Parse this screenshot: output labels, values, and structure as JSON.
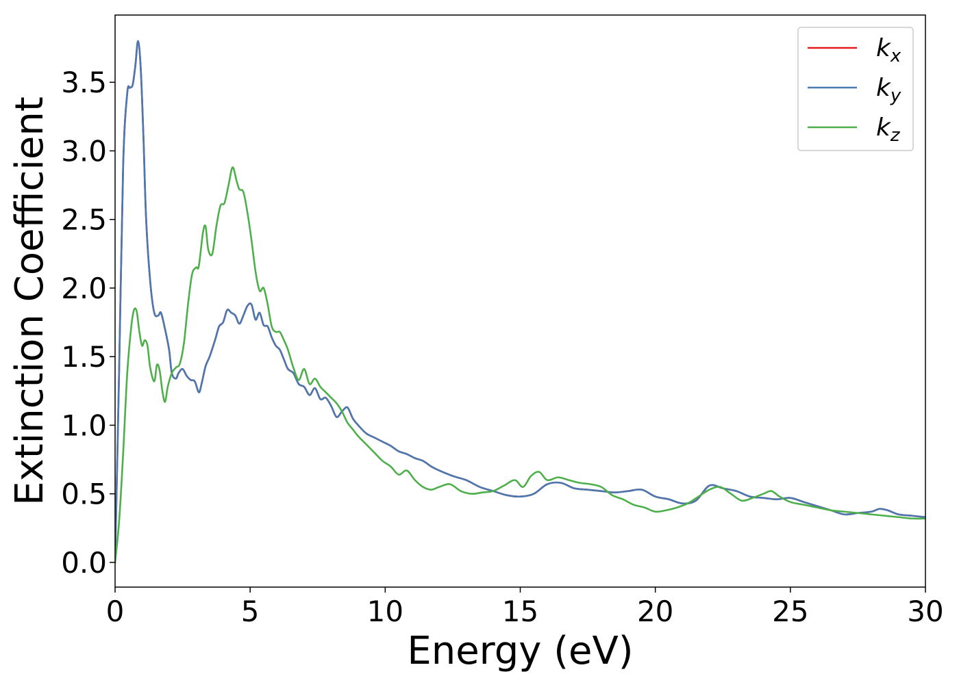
{
  "chart_data": {
    "type": "line",
    "title": "",
    "xlabel": "Energy (eV)",
    "ylabel": "Extinction Coefficient",
    "xlim": [
      0,
      30
    ],
    "ylim": [
      -0.18,
      3.99
    ],
    "xticks": [
      0,
      5,
      10,
      15,
      20,
      25,
      30
    ],
    "xtick_labels": [
      "0",
      "5",
      "10",
      "15",
      "20",
      "25",
      "30"
    ],
    "yticks": [
      0.0,
      0.5,
      1.0,
      1.5,
      2.0,
      2.5,
      3.0,
      3.5
    ],
    "ytick_labels": [
      "0.0",
      "0.5",
      "1.0",
      "1.5",
      "2.0",
      "2.5",
      "3.0",
      "3.5"
    ],
    "grid": false,
    "legend_position": "top-right",
    "series": [
      {
        "name": "k",
        "subscript": "x",
        "color": "#e41a1c",
        "x": [
          0,
          0.15,
          0.3,
          0.45,
          0.55,
          0.65,
          0.75,
          0.85,
          0.95,
          1.05,
          1.15,
          1.3,
          1.45,
          1.6,
          1.7,
          1.85,
          2.0,
          2.1,
          2.25,
          2.35,
          2.5,
          2.65,
          2.8,
          2.95,
          3.1,
          3.2,
          3.35,
          3.5,
          3.7,
          3.85,
          4.0,
          4.15,
          4.3,
          4.45,
          4.6,
          4.75,
          4.9,
          5.05,
          5.2,
          5.35,
          5.5,
          5.65,
          5.8,
          5.95,
          6.1,
          6.25,
          6.4,
          6.6,
          6.8,
          7.0,
          7.2,
          7.4,
          7.6,
          7.8,
          8.0,
          8.2,
          8.4,
          8.6,
          8.8,
          9.0,
          9.3,
          9.6,
          9.9,
          10.2,
          10.5,
          10.8,
          11.1,
          11.4,
          11.7,
          12.0,
          12.5,
          13.0,
          13.5,
          14.0,
          14.5,
          15.0,
          15.5,
          16.0,
          16.5,
          17.0,
          17.5,
          18.0,
          18.5,
          19.0,
          19.5,
          20.0,
          20.5,
          21.0,
          21.5,
          22.0,
          22.5,
          23.0,
          23.5,
          24.0,
          24.5,
          25.0,
          25.5,
          26.0,
          26.5,
          27.0,
          27.5,
          28.0,
          28.3,
          28.6,
          29.0,
          29.5,
          30.0
        ],
        "values": [
          0.0,
          1.4,
          2.9,
          3.42,
          3.46,
          3.48,
          3.62,
          3.8,
          3.6,
          3.1,
          2.5,
          2.05,
          1.82,
          1.8,
          1.82,
          1.7,
          1.55,
          1.38,
          1.34,
          1.38,
          1.41,
          1.36,
          1.33,
          1.32,
          1.24,
          1.3,
          1.43,
          1.5,
          1.62,
          1.72,
          1.75,
          1.84,
          1.82,
          1.8,
          1.74,
          1.8,
          1.87,
          1.88,
          1.77,
          1.82,
          1.73,
          1.72,
          1.64,
          1.58,
          1.55,
          1.48,
          1.41,
          1.38,
          1.3,
          1.28,
          1.22,
          1.27,
          1.19,
          1.2,
          1.14,
          1.06,
          1.1,
          1.13,
          1.05,
          1.0,
          0.94,
          0.91,
          0.88,
          0.85,
          0.81,
          0.79,
          0.76,
          0.74,
          0.7,
          0.67,
          0.63,
          0.6,
          0.55,
          0.52,
          0.49,
          0.48,
          0.5,
          0.57,
          0.58,
          0.54,
          0.53,
          0.52,
          0.51,
          0.52,
          0.53,
          0.48,
          0.46,
          0.43,
          0.45,
          0.56,
          0.54,
          0.52,
          0.48,
          0.47,
          0.46,
          0.47,
          0.44,
          0.41,
          0.38,
          0.35,
          0.36,
          0.37,
          0.39,
          0.38,
          0.35,
          0.34,
          0.33
        ]
      },
      {
        "name": "k",
        "subscript": "y",
        "color": "#4a78b0",
        "x": [
          0,
          0.15,
          0.3,
          0.45,
          0.55,
          0.65,
          0.75,
          0.85,
          0.95,
          1.05,
          1.15,
          1.3,
          1.45,
          1.6,
          1.7,
          1.85,
          2.0,
          2.1,
          2.25,
          2.35,
          2.5,
          2.65,
          2.8,
          2.95,
          3.1,
          3.2,
          3.35,
          3.5,
          3.7,
          3.85,
          4.0,
          4.15,
          4.3,
          4.45,
          4.6,
          4.75,
          4.9,
          5.05,
          5.2,
          5.35,
          5.5,
          5.65,
          5.8,
          5.95,
          6.1,
          6.25,
          6.4,
          6.6,
          6.8,
          7.0,
          7.2,
          7.4,
          7.6,
          7.8,
          8.0,
          8.2,
          8.4,
          8.6,
          8.8,
          9.0,
          9.3,
          9.6,
          9.9,
          10.2,
          10.5,
          10.8,
          11.1,
          11.4,
          11.7,
          12.0,
          12.5,
          13.0,
          13.5,
          14.0,
          14.5,
          15.0,
          15.5,
          16.0,
          16.5,
          17.0,
          17.5,
          18.0,
          18.5,
          19.0,
          19.5,
          20.0,
          20.5,
          21.0,
          21.5,
          22.0,
          22.5,
          23.0,
          23.5,
          24.0,
          24.5,
          25.0,
          25.5,
          26.0,
          26.5,
          27.0,
          27.5,
          28.0,
          28.3,
          28.6,
          29.0,
          29.5,
          30.0
        ],
        "values": [
          0.0,
          1.4,
          2.9,
          3.42,
          3.46,
          3.48,
          3.62,
          3.8,
          3.6,
          3.1,
          2.5,
          2.05,
          1.82,
          1.8,
          1.82,
          1.7,
          1.55,
          1.38,
          1.34,
          1.38,
          1.41,
          1.36,
          1.33,
          1.32,
          1.24,
          1.3,
          1.43,
          1.5,
          1.62,
          1.72,
          1.75,
          1.84,
          1.82,
          1.8,
          1.74,
          1.8,
          1.87,
          1.88,
          1.77,
          1.82,
          1.73,
          1.72,
          1.64,
          1.58,
          1.55,
          1.48,
          1.41,
          1.38,
          1.3,
          1.28,
          1.22,
          1.27,
          1.19,
          1.2,
          1.14,
          1.06,
          1.1,
          1.13,
          1.05,
          1.0,
          0.94,
          0.91,
          0.88,
          0.85,
          0.81,
          0.79,
          0.76,
          0.74,
          0.7,
          0.67,
          0.63,
          0.6,
          0.55,
          0.52,
          0.49,
          0.48,
          0.5,
          0.57,
          0.58,
          0.54,
          0.53,
          0.52,
          0.51,
          0.52,
          0.53,
          0.48,
          0.46,
          0.43,
          0.45,
          0.56,
          0.54,
          0.52,
          0.48,
          0.47,
          0.46,
          0.47,
          0.44,
          0.41,
          0.38,
          0.35,
          0.36,
          0.37,
          0.39,
          0.38,
          0.35,
          0.34,
          0.33
        ]
      },
      {
        "name": "k",
        "subscript": "z",
        "color": "#4daf4a",
        "x": [
          0,
          0.15,
          0.3,
          0.45,
          0.6,
          0.7,
          0.8,
          0.9,
          1.0,
          1.1,
          1.2,
          1.3,
          1.45,
          1.55,
          1.65,
          1.75,
          1.85,
          1.95,
          2.1,
          2.25,
          2.4,
          2.55,
          2.7,
          2.85,
          3.0,
          3.1,
          3.25,
          3.35,
          3.45,
          3.6,
          3.75,
          3.9,
          4.05,
          4.2,
          4.35,
          4.5,
          4.6,
          4.75,
          4.9,
          5.05,
          5.2,
          5.35,
          5.5,
          5.65,
          5.8,
          5.95,
          6.1,
          6.25,
          6.4,
          6.6,
          6.8,
          7.0,
          7.2,
          7.4,
          7.6,
          7.8,
          8.0,
          8.2,
          8.4,
          8.6,
          8.8,
          9.0,
          9.3,
          9.6,
          9.9,
          10.2,
          10.5,
          10.8,
          11.1,
          11.4,
          11.7,
          12.0,
          12.4,
          12.8,
          13.2,
          13.6,
          14.0,
          14.4,
          14.8,
          15.1,
          15.4,
          15.7,
          16.0,
          16.4,
          16.8,
          17.2,
          17.6,
          18.0,
          18.4,
          18.8,
          19.2,
          19.6,
          20.0,
          20.4,
          20.8,
          21.2,
          21.6,
          22.0,
          22.4,
          22.8,
          23.2,
          23.6,
          24.0,
          24.3,
          24.6,
          25.0,
          25.5,
          26.0,
          26.5,
          27.0,
          27.5,
          28.0,
          28.5,
          29.0,
          29.5,
          30.0
        ],
        "values": [
          0.0,
          0.3,
          0.8,
          1.38,
          1.72,
          1.84,
          1.83,
          1.68,
          1.58,
          1.62,
          1.58,
          1.42,
          1.32,
          1.44,
          1.4,
          1.25,
          1.17,
          1.28,
          1.38,
          1.42,
          1.45,
          1.6,
          1.88,
          2.1,
          2.15,
          2.16,
          2.4,
          2.45,
          2.28,
          2.25,
          2.45,
          2.6,
          2.62,
          2.75,
          2.88,
          2.78,
          2.72,
          2.7,
          2.55,
          2.35,
          2.12,
          1.98,
          2.0,
          1.88,
          1.72,
          1.68,
          1.68,
          1.62,
          1.55,
          1.42,
          1.33,
          1.41,
          1.3,
          1.34,
          1.28,
          1.24,
          1.2,
          1.16,
          1.1,
          1.02,
          0.97,
          0.92,
          0.86,
          0.8,
          0.74,
          0.7,
          0.64,
          0.67,
          0.6,
          0.55,
          0.53,
          0.55,
          0.57,
          0.52,
          0.5,
          0.51,
          0.52,
          0.56,
          0.6,
          0.55,
          0.63,
          0.66,
          0.6,
          0.62,
          0.6,
          0.58,
          0.57,
          0.55,
          0.49,
          0.46,
          0.42,
          0.4,
          0.37,
          0.38,
          0.4,
          0.43,
          0.48,
          0.53,
          0.55,
          0.5,
          0.45,
          0.47,
          0.5,
          0.52,
          0.48,
          0.44,
          0.42,
          0.4,
          0.38,
          0.37,
          0.36,
          0.35,
          0.34,
          0.33,
          0.32,
          0.32
        ]
      }
    ]
  }
}
